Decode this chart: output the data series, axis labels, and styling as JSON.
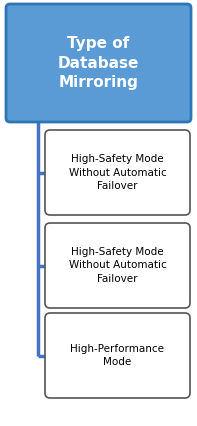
{
  "title": "Type of\nDatabase\nMirroring",
  "title_box_color": "#5b9bd5",
  "title_text_color": "#ffffff",
  "title_border_color": "#2e75b6",
  "child_boxes": [
    "High-Safety Mode\nWithout Automatic\nFailover",
    "High-Safety Mode\nWithout Automatic\nFailover",
    "High-Performance\nMode"
  ],
  "child_box_color": "#ffffff",
  "child_text_color": "#000000",
  "child_border_color": "#555555",
  "line_color": "#4472c4",
  "background_color": "#ffffff",
  "fig_width": 1.97,
  "fig_height": 4.26
}
